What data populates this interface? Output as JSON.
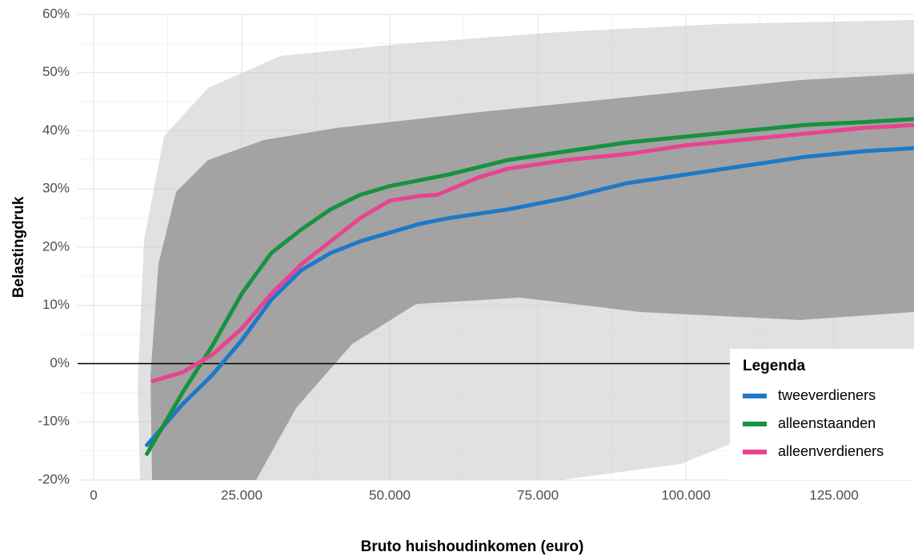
{
  "chart_data": {
    "type": "line",
    "x_label": "Bruto huishoudinkomen (euro)",
    "y_label": "Belastingdruk",
    "xlim": [
      -2700,
      138500
    ],
    "ylim": [
      -20,
      60
    ],
    "xticks": [
      0,
      {
        "value": 25000,
        "label": "25.000"
      },
      {
        "value": 50000,
        "label": "50.000"
      },
      {
        "value": 75000,
        "label": "75.000"
      },
      {
        "value": 100000,
        "label": "100.000"
      },
      {
        "value": 125000,
        "label": "125.000"
      }
    ],
    "yticks": [
      {
        "value": -20,
        "label": "-20%"
      },
      {
        "value": -10,
        "label": "-10%"
      },
      {
        "value": 0,
        "label": "0%"
      },
      {
        "value": 10,
        "label": "10%"
      },
      {
        "value": 20,
        "label": "20%"
      },
      {
        "value": 30,
        "label": "30%"
      },
      {
        "value": 40,
        "label": "40%"
      },
      {
        "value": 50,
        "label": "50%"
      },
      {
        "value": 60,
        "label": "60%"
      }
    ],
    "grid": true,
    "reference_line": 0,
    "legend_title": "Legenda",
    "legend_position": "lower right",
    "series": [
      {
        "name": "tweeverdieners",
        "color": "#1f78c8",
        "x": [
          9000,
          15000,
          20000,
          25000,
          30000,
          35000,
          40000,
          45000,
          50000,
          55000,
          60000,
          70000,
          80000,
          90000,
          100000,
          110000,
          120000,
          130000,
          138500
        ],
        "values": [
          -14,
          -7,
          -2,
          4,
          11,
          16,
          19,
          21,
          22.5,
          24,
          25,
          26.5,
          28.5,
          31,
          32.5,
          34,
          35.5,
          36.5,
          37
        ]
      },
      {
        "name": "alleenstaanden",
        "color": "#17923f",
        "x": [
          9000,
          15000,
          20000,
          25000,
          30000,
          35000,
          40000,
          45000,
          50000,
          60000,
          70000,
          80000,
          90000,
          100000,
          110000,
          120000,
          130000,
          138500
        ],
        "values": [
          -15.5,
          -5,
          3,
          12,
          19,
          23,
          26.5,
          29,
          30.5,
          32.5,
          35,
          36.5,
          38,
          39,
          40,
          41,
          41.5,
          42
        ]
      },
      {
        "name": "alleenverdieners",
        "color": "#e8448f",
        "x": [
          10000,
          15000,
          20000,
          25000,
          30000,
          35000,
          40000,
          45000,
          50000,
          55000,
          58000,
          65000,
          70000,
          80000,
          90000,
          100000,
          110000,
          120000,
          130000,
          138500
        ],
        "values": [
          -3,
          -1.5,
          1.5,
          6,
          12,
          17,
          21,
          25,
          28,
          28.8,
          29,
          32,
          33.5,
          35,
          36,
          37.5,
          38.5,
          39.5,
          40.5,
          41
        ]
      }
    ]
  }
}
